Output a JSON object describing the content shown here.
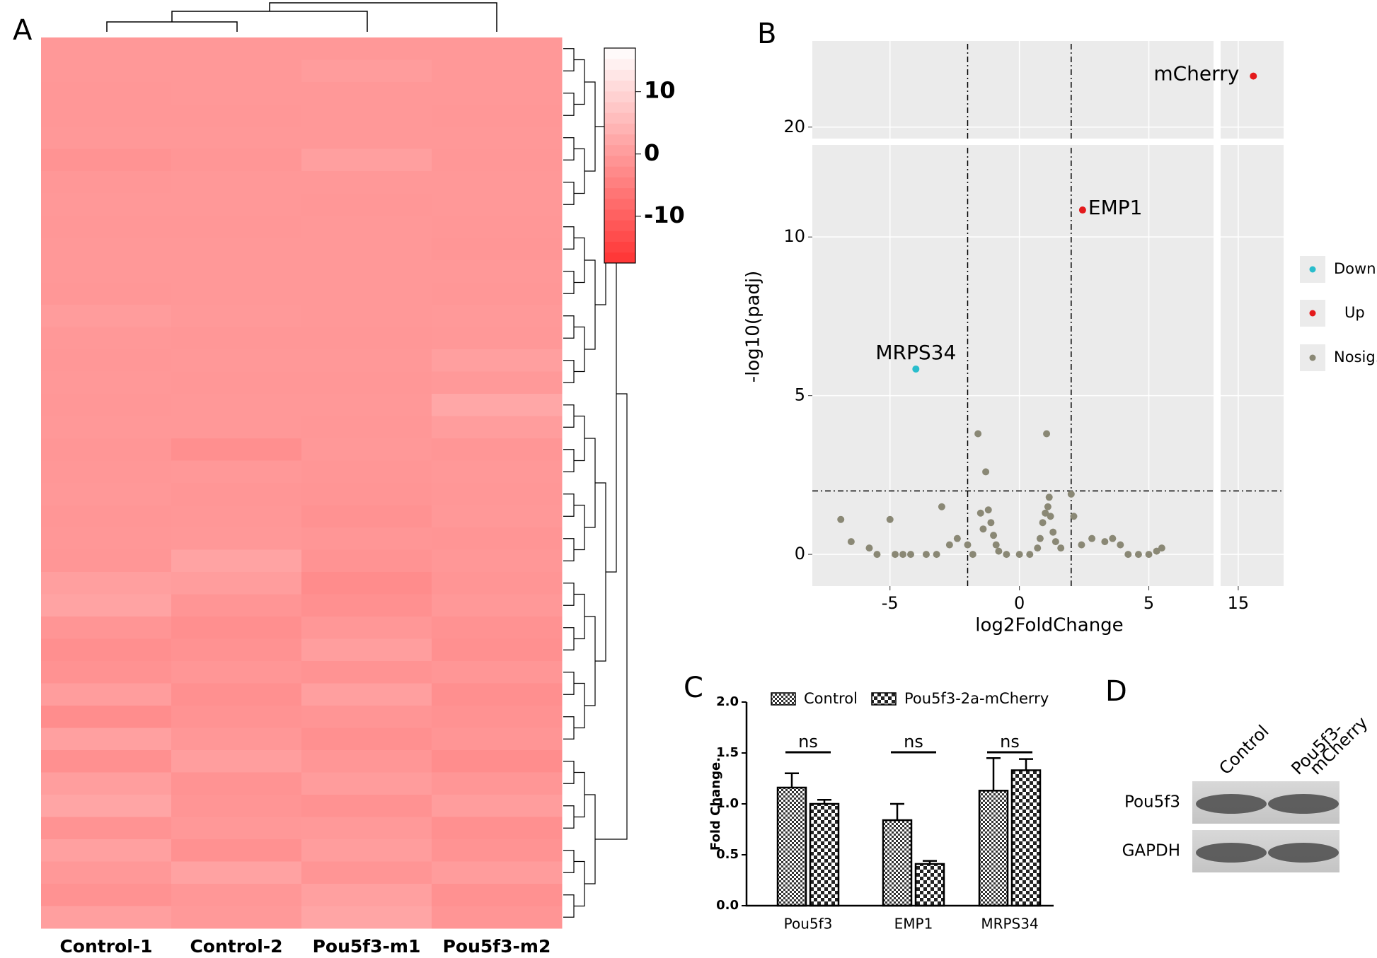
{
  "chart_data": [
    {
      "type": "heatmap",
      "panel": "A",
      "columns": [
        "Control-1",
        "Control-2",
        "Pou5f3-m1",
        "Pou5f3-m2"
      ],
      "values": [
        [
          -0.5,
          -0.5,
          -0.4,
          -0.5
        ],
        [
          -0.5,
          -0.5,
          0.3,
          -0.5
        ],
        [
          -0.6,
          -0.5,
          -0.5,
          -0.5
        ],
        [
          -0.6,
          -0.6,
          -0.5,
          -0.6
        ],
        [
          -0.5,
          -0.5,
          -0.5,
          -0.5
        ],
        [
          -1.2,
          -0.8,
          0.8,
          -0.6
        ],
        [
          -0.6,
          -0.5,
          -0.5,
          -0.5
        ],
        [
          -0.5,
          -0.5,
          -0.6,
          -0.5
        ],
        [
          -0.6,
          -0.6,
          -0.5,
          -0.6
        ],
        [
          -0.5,
          -0.5,
          -0.5,
          -0.7
        ],
        [
          -0.5,
          -0.5,
          -0.5,
          -0.5
        ],
        [
          -0.6,
          -0.5,
          -0.5,
          -0.6
        ],
        [
          0.2,
          -0.3,
          -0.5,
          -0.2
        ],
        [
          -0.5,
          -0.6,
          -0.6,
          -0.4
        ],
        [
          -0.6,
          -0.5,
          -0.5,
          0.8
        ],
        [
          -0.5,
          -0.6,
          -0.6,
          -0.3
        ],
        [
          -0.6,
          -0.5,
          -0.5,
          2.2
        ],
        [
          -0.5,
          -0.4,
          -0.6,
          0.5
        ],
        [
          -0.7,
          -2.0,
          -0.5,
          -0.8
        ],
        [
          -0.6,
          -0.5,
          -0.7,
          -0.4
        ],
        [
          -0.5,
          -0.8,
          -1.0,
          -0.6
        ],
        [
          -0.7,
          -0.6,
          -1.5,
          -0.5
        ],
        [
          -0.6,
          -0.4,
          -0.8,
          -0.9
        ],
        [
          -0.8,
          1.5,
          -1.3,
          -0.6
        ],
        [
          0.8,
          0.5,
          -2.5,
          -1.0
        ],
        [
          1.5,
          -0.9,
          -1.8,
          -0.5
        ],
        [
          -1.0,
          -2.0,
          -0.6,
          -1.5
        ],
        [
          -2.0,
          -1.5,
          0.6,
          -1.8
        ],
        [
          -1.5,
          -0.8,
          -1.2,
          -0.7
        ],
        [
          0.5,
          -1.8,
          0.8,
          -2.0
        ],
        [
          -2.2,
          -1.2,
          -0.9,
          -1.5
        ],
        [
          1.0,
          -0.6,
          -1.8,
          -1.0
        ],
        [
          -1.8,
          0.6,
          -0.7,
          -2.2
        ],
        [
          0.6,
          -1.3,
          0.2,
          -0.8
        ],
        [
          1.8,
          -0.9,
          -1.4,
          0.5
        ],
        [
          -1.3,
          -0.5,
          -0.3,
          -1.8
        ],
        [
          0.9,
          -1.6,
          0.5,
          -1.2
        ],
        [
          -0.4,
          1.2,
          -1.0,
          0.3
        ],
        [
          -1.5,
          -0.6,
          0.9,
          -1.6
        ],
        [
          0.7,
          -0.2,
          1.8,
          -0.9
        ]
      ],
      "clim": [
        -17.5,
        17
      ],
      "cticks": [
        10,
        0,
        -10
      ],
      "colors": [
        "#ff3333",
        "#ffffff"
      ]
    },
    {
      "type": "scatter",
      "panel": "B",
      "xlabel": "log2FoldChange",
      "ylabel": "-log10(padj)",
      "xlim": [
        [
          -8,
          7.5
        ],
        [
          14.3,
          16.8
        ]
      ],
      "ylim": [
        [
          -1,
          12.9
        ],
        [
          19.64,
          22.7
        ]
      ],
      "xticks": [
        -5,
        0,
        5,
        15
      ],
      "yticks": [
        0,
        5,
        10,
        20
      ],
      "vlines": [
        -2,
        2
      ],
      "hlines": [
        2
      ],
      "grid": true,
      "series": [
        {
          "name": "Down",
          "color": "#29bdcc",
          "x": [
            -4.0
          ],
          "values": [
            5.84
          ],
          "labels": [
            "MRPS34"
          ],
          "label_colors": [
            "#000000"
          ]
        },
        {
          "name": "Up",
          "color": "#e41a1c",
          "x": [
            2.44,
            15.6
          ],
          "values": [
            10.85,
            21.6
          ],
          "labels": [
            "EMP1",
            "mCherry"
          ],
          "label_colors": [
            "#000000",
            "#e41a1c"
          ]
        },
        {
          "name": "Nosig.",
          "color": "#8a8875",
          "x": [
            -6.9,
            -6.5,
            -5.8,
            -5.5,
            -5.0,
            -4.8,
            -4.5,
            -4.2,
            -3.6,
            -3.2,
            -3.0,
            -2.7,
            -2.4,
            -2.0,
            -1.8,
            -1.6,
            -1.5,
            -1.4,
            -1.3,
            -1.2,
            -1.1,
            -1.0,
            -0.9,
            -0.8,
            -0.5,
            0,
            0.4,
            0.7,
            0.8,
            0.9,
            1.0,
            1.05,
            1.1,
            1.15,
            1.2,
            1.3,
            1.4,
            1.6,
            2.0,
            2.1,
            2.4,
            2.8,
            3.3,
            3.6,
            3.9,
            4.2,
            4.6,
            5.0,
            5.3,
            5.5
          ],
          "values": [
            1.1,
            0.4,
            0.2,
            0,
            1.1,
            0,
            0,
            0,
            0,
            0,
            1.5,
            0.3,
            0.5,
            0.3,
            0,
            3.8,
            1.3,
            0.8,
            2.6,
            1.4,
            1.0,
            0.6,
            0.3,
            0.1,
            0,
            0,
            0,
            0.2,
            0.5,
            1.0,
            1.3,
            3.8,
            1.5,
            1.8,
            1.2,
            0.7,
            0.4,
            0.2,
            1.9,
            1.2,
            0.3,
            0.5,
            0.4,
            0.5,
            0.3,
            0,
            0,
            0,
            0.1,
            0.2
          ]
        }
      ]
    },
    {
      "type": "bar",
      "panel": "C",
      "ylabel": "Fold Change.",
      "categories": [
        "Pou5f3",
        "EMP1",
        "MRPS34"
      ],
      "ylim": [
        0,
        2
      ],
      "yticks": [
        {
          "value": 0,
          "label": "0.0"
        },
        {
          "value": 0.5,
          "label": "0.5"
        },
        {
          "value": 1,
          "label": "1.0"
        },
        {
          "value": 1.5,
          "label": "1.5"
        },
        {
          "value": 2,
          "label": "2.0"
        }
      ],
      "series": [
        {
          "name": "Control",
          "pattern": "fine",
          "values": [
            1.16,
            0.84,
            1.13
          ],
          "errors": [
            0.14,
            0.16,
            0.32
          ]
        },
        {
          "name": "Pou5f3-2a-mCherry",
          "pattern": "coarse",
          "values": [
            1.0,
            0.41,
            1.33
          ],
          "errors": [
            0.04,
            0.03,
            0.11
          ]
        }
      ],
      "annotations": [
        "ns",
        "ns",
        "ns"
      ]
    },
    {
      "type": "blot",
      "panel": "D",
      "lanes": [
        [
          "Control"
        ],
        [
          "Pou5f3-",
          "mCherry"
        ]
      ],
      "rows": [
        "Pou5f3",
        "GAPDH"
      ]
    }
  ]
}
